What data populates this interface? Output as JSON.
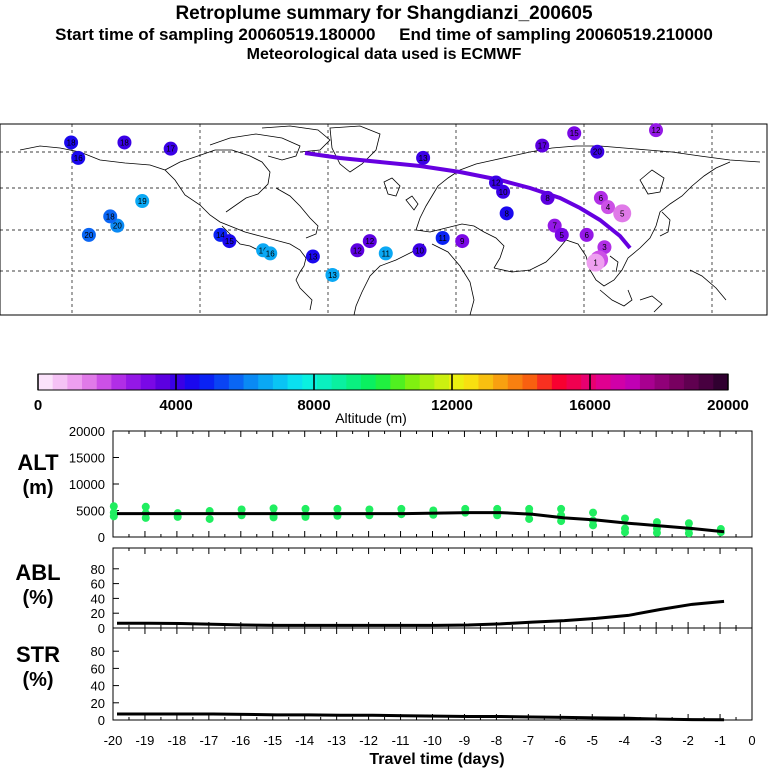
{
  "header": {
    "title": "Retroplume summary for Shangdianzi_200605",
    "start_label": "Start time of sampling 20060519.180000",
    "end_label": "End time of sampling 20060519.210000",
    "met_label": "Meteorological data used is ECMWF"
  },
  "colors": {
    "altitude_scale": [
      "#fbe3fb",
      "#f5c2f5",
      "#ee9ff0",
      "#e07ae8",
      "#cc50e6",
      "#b12ee6",
      "#9418e6",
      "#7a08e6",
      "#5c00e0",
      "#3a00e6",
      "#1a08ee",
      "#0a22f4",
      "#0a44f4",
      "#0a66f4",
      "#0a8af4",
      "#0aa8f4",
      "#0ac4f4",
      "#0ae0f0",
      "#0af0e0",
      "#0af0c0",
      "#0af0a0",
      "#0af080",
      "#0af060",
      "#20f040",
      "#50f020",
      "#80f010",
      "#a8f010",
      "#ccf010",
      "#ecf010",
      "#f8e010",
      "#f8c010",
      "#f8a010",
      "#f88010",
      "#f86010",
      "#f83020",
      "#f80030",
      "#f00050",
      "#e80070",
      "#e00090",
      "#d000a8",
      "#c000b4",
      "#a80090",
      "#900078",
      "#780060",
      "#600050",
      "#480040",
      "#300030"
    ],
    "plume_purple": "#6600e0",
    "ground_point": "#20ee60",
    "track_line": "#000000"
  },
  "colorbar": {
    "tick_labels": [
      "0",
      "4000",
      "8000",
      "12000",
      "16000",
      "20000"
    ],
    "label": "Altitude (m)"
  },
  "map": {
    "stations": [
      {
        "label": "18",
        "lon": -176,
        "lat": 76,
        "alt": 4300
      },
      {
        "label": "18",
        "lon": -146,
        "lat": 76,
        "alt": 4000
      },
      {
        "label": "16",
        "lon": -172,
        "lat": 71,
        "alt": 4500
      },
      {
        "label": "17",
        "lon": -120,
        "lat": 74,
        "alt": 4200
      },
      {
        "label": "19",
        "lon": -136,
        "lat": 57,
        "alt": 6500
      },
      {
        "label": "20",
        "lon": -150,
        "lat": 49,
        "alt": 6000
      },
      {
        "label": "18",
        "lon": -154,
        "lat": 52,
        "alt": 5900
      },
      {
        "label": "20",
        "lon": -166,
        "lat": 46,
        "alt": 5600
      },
      {
        "label": "14",
        "lon": -92,
        "lat": 46,
        "alt": 4800
      },
      {
        "label": "15",
        "lon": -87,
        "lat": 44,
        "alt": 4300
      },
      {
        "label": "16",
        "lon": -68,
        "lat": 41,
        "alt": 6800
      },
      {
        "label": "16",
        "lon": -64,
        "lat": 40,
        "alt": 6600
      },
      {
        "label": "13",
        "lon": -40,
        "lat": 39,
        "alt": 4500
      },
      {
        "label": "13",
        "lon": -29,
        "lat": 33,
        "alt": 6400
      },
      {
        "label": "12",
        "lon": -15,
        "lat": 41,
        "alt": 3800
      },
      {
        "label": "12",
        "lon": -8,
        "lat": 44,
        "alt": 3500
      },
      {
        "label": "11",
        "lon": 1,
        "lat": 40,
        "alt": 6500
      },
      {
        "label": "10",
        "lon": 20,
        "lat": 41,
        "alt": 4100
      },
      {
        "label": "9",
        "lon": 44,
        "lat": 44,
        "alt": 3000
      },
      {
        "label": "11",
        "lon": 33,
        "lat": 45,
        "alt": 4800
      },
      {
        "label": "13",
        "lon": 22,
        "lat": 71,
        "alt": 4200
      },
      {
        "label": "12",
        "lon": 63,
        "lat": 63,
        "alt": 4000
      },
      {
        "label": "10",
        "lon": 67,
        "lat": 60,
        "alt": 4200
      },
      {
        "label": "8",
        "lon": 69,
        "lat": 53,
        "alt": 4300
      },
      {
        "label": "8",
        "lon": 92,
        "lat": 58,
        "alt": 3700
      },
      {
        "label": "15",
        "lon": 107,
        "lat": 79,
        "alt": 3000
      },
      {
        "label": "17",
        "lon": 89,
        "lat": 75,
        "alt": 3600
      },
      {
        "label": "20",
        "lon": 120,
        "lat": 73,
        "alt": 3900
      },
      {
        "label": "12",
        "lon": 153,
        "lat": 80,
        "alt": 2600
      },
      {
        "label": "6",
        "lon": 122,
        "lat": 58,
        "alt": 2400
      },
      {
        "label": "4",
        "lon": 126,
        "lat": 55,
        "alt": 2000
      },
      {
        "label": "5",
        "lon": 134,
        "lat": 53,
        "alt": 1600
      },
      {
        "label": "3",
        "lon": 124,
        "lat": 42,
        "alt": 2400
      },
      {
        "label": "2",
        "lon": 121,
        "lat": 38,
        "alt": 1900
      },
      {
        "label": "1",
        "lon": 119,
        "lat": 37,
        "alt": 1200
      },
      {
        "label": "7",
        "lon": 96,
        "lat": 49,
        "alt": 2800
      },
      {
        "label": "5",
        "lon": 100,
        "lat": 46,
        "alt": 3200
      },
      {
        "label": "6",
        "lon": 114,
        "lat": 46,
        "alt": 2800
      }
    ]
  },
  "panels": {
    "alt": {
      "label_line1": "ALT",
      "label_line2": "(m)",
      "yticks": [
        "0",
        "5000",
        "10000",
        "15000",
        "20000"
      ]
    },
    "abl": {
      "label_line1": "ABL",
      "label_line2": "(%)",
      "yticks": [
        "0",
        "20",
        "40",
        "60",
        "80"
      ]
    },
    "str": {
      "label_line1": "STR",
      "label_line2": "(%)",
      "yticks": [
        "0",
        "20",
        "40",
        "60",
        "80"
      ]
    }
  },
  "xaxis": {
    "tick_labels": [
      "-20",
      "-19",
      "-18",
      "-17",
      "-16",
      "-15",
      "-14",
      "-13",
      "-12",
      "-11",
      "-10",
      "-9",
      "-8",
      "-7",
      "-6",
      "-5",
      "-4",
      "-3",
      "-2",
      "-1",
      "0"
    ],
    "label": "Travel time (days)"
  },
  "chart_data": {
    "type": "line",
    "title": "Retroplume summary for Shangdianzi_200605",
    "x": [
      -20,
      -19,
      -18,
      -17,
      -16,
      -15,
      -14,
      -13,
      -12,
      -11,
      -10,
      -9,
      -8,
      -7,
      -6,
      -5,
      -4,
      -3,
      -2,
      -1
    ],
    "xlabel": "Travel time (days)",
    "xlim": [
      -20,
      0
    ],
    "series": [
      {
        "name": "ALT (m)",
        "ylim": [
          0,
          20000
        ],
        "values": [
          4400,
          4400,
          4400,
          4400,
          4400,
          4400,
          4400,
          4400,
          4400,
          4400,
          4500,
          4600,
          4600,
          4300,
          3600,
          3200,
          2600,
          2100,
          1600,
          1000
        ],
        "scatter": [
          [
            -20.1,
            5800
          ],
          [
            -20.1,
            4600
          ],
          [
            -20.1,
            3900
          ],
          [
            -19.1,
            5700
          ],
          [
            -19.1,
            4500
          ],
          [
            -19.1,
            3600
          ],
          [
            -18.1,
            4500
          ],
          [
            -18.1,
            3800
          ],
          [
            -17.1,
            4900
          ],
          [
            -17.1,
            3400
          ],
          [
            -16.1,
            5200
          ],
          [
            -16.1,
            4100
          ],
          [
            -15.1,
            5400
          ],
          [
            -15.1,
            4200
          ],
          [
            -15.1,
            3700
          ],
          [
            -14.1,
            5300
          ],
          [
            -14.1,
            4100
          ],
          [
            -14.1,
            3800
          ],
          [
            -13.1,
            5300
          ],
          [
            -13.1,
            4000
          ],
          [
            -12.1,
            5200
          ],
          [
            -12.1,
            4100
          ],
          [
            -11.1,
            5300
          ],
          [
            -11.1,
            4300
          ],
          [
            -10.1,
            5000
          ],
          [
            -10.1,
            4200
          ],
          [
            -9.1,
            5300
          ],
          [
            -9.1,
            4600
          ],
          [
            -8.1,
            5300
          ],
          [
            -8.1,
            4700
          ],
          [
            -8.1,
            4100
          ],
          [
            -7.1,
            5300
          ],
          [
            -7.1,
            4500
          ],
          [
            -7.1,
            3400
          ],
          [
            -6.1,
            5300
          ],
          [
            -6.1,
            4100
          ],
          [
            -6.1,
            3000
          ],
          [
            -5.1,
            4600
          ],
          [
            -5.1,
            3100
          ],
          [
            -5.1,
            2200
          ],
          [
            -4.1,
            3500
          ],
          [
            -4.1,
            1600
          ],
          [
            -4.1,
            900
          ],
          [
            -3.1,
            2800
          ],
          [
            -3.1,
            1600
          ],
          [
            -3.1,
            800
          ],
          [
            -2.1,
            2600
          ],
          [
            -2.1,
            1500
          ],
          [
            -2.1,
            700
          ],
          [
            -1.1,
            1500
          ],
          [
            -1.1,
            900
          ]
        ]
      },
      {
        "name": "ABL (%)",
        "ylim": [
          0,
          100
        ],
        "values": [
          6.5,
          6.5,
          6,
          5,
          4,
          3.5,
          3.5,
          3.5,
          3.5,
          3.5,
          3.5,
          4,
          5.5,
          8,
          10,
          13,
          17,
          25,
          32,
          36
        ]
      },
      {
        "name": "STR (%)",
        "ylim": [
          0,
          100
        ],
        "values": [
          7,
          7,
          7,
          7,
          6.5,
          6,
          6,
          5.5,
          5.5,
          5,
          4.5,
          4,
          4,
          3.5,
          3,
          2.5,
          2,
          1,
          0.5,
          0.3
        ]
      }
    ]
  }
}
